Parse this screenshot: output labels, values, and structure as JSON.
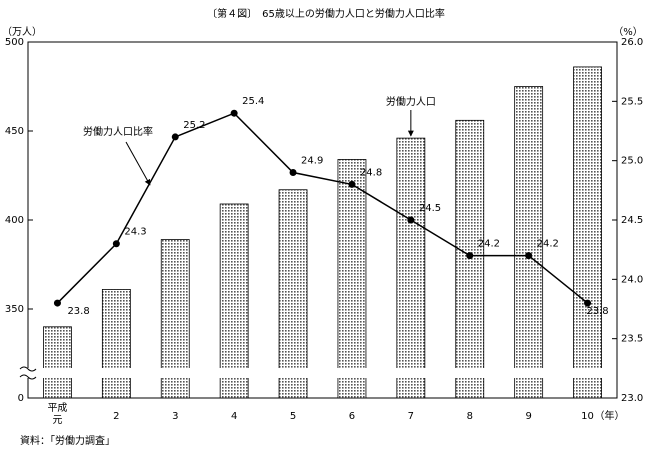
{
  "chart_data": {
    "type": "bar_line",
    "title": "〔第４図〕　65歳以上の労働力人口と労働力人口比率",
    "y_axis_label": "（万人）",
    "y2_axis_label": "（%）",
    "x_era": "平成",
    "x_unit": "（年）",
    "categories": [
      "元",
      "2",
      "3",
      "4",
      "5",
      "6",
      "7",
      "8",
      "9",
      "10"
    ],
    "series": [
      {
        "name": "労働力人口",
        "type": "bar",
        "color": "#d0d0d0",
        "values": [
          340,
          361,
          389,
          409,
          417,
          434,
          446,
          456,
          475,
          486
        ]
      },
      {
        "name": "労働力人口比率",
        "type": "line",
        "axis": "y2",
        "color": "#000000",
        "values": [
          23.8,
          24.3,
          25.2,
          25.4,
          24.9,
          24.8,
          24.5,
          24.2,
          24.2,
          23.8
        ]
      }
    ],
    "ylim": [
      0,
      500
    ],
    "y_break": [
      0,
      300
    ],
    "yticks": [
      0,
      350,
      400,
      450,
      500
    ],
    "y2lim": [
      23.0,
      26.0
    ],
    "y2ticks": [
      {
        "value": 23.0,
        "label": "23.0"
      },
      23.5,
      {
        "value": 24.0,
        "label": "24.0"
      },
      24.5,
      {
        "value": 25.0,
        "label": "25.0"
      },
      25.5,
      {
        "value": 26.0,
        "label": "26.0"
      }
    ],
    "source": "資料：「労働力調査」"
  }
}
